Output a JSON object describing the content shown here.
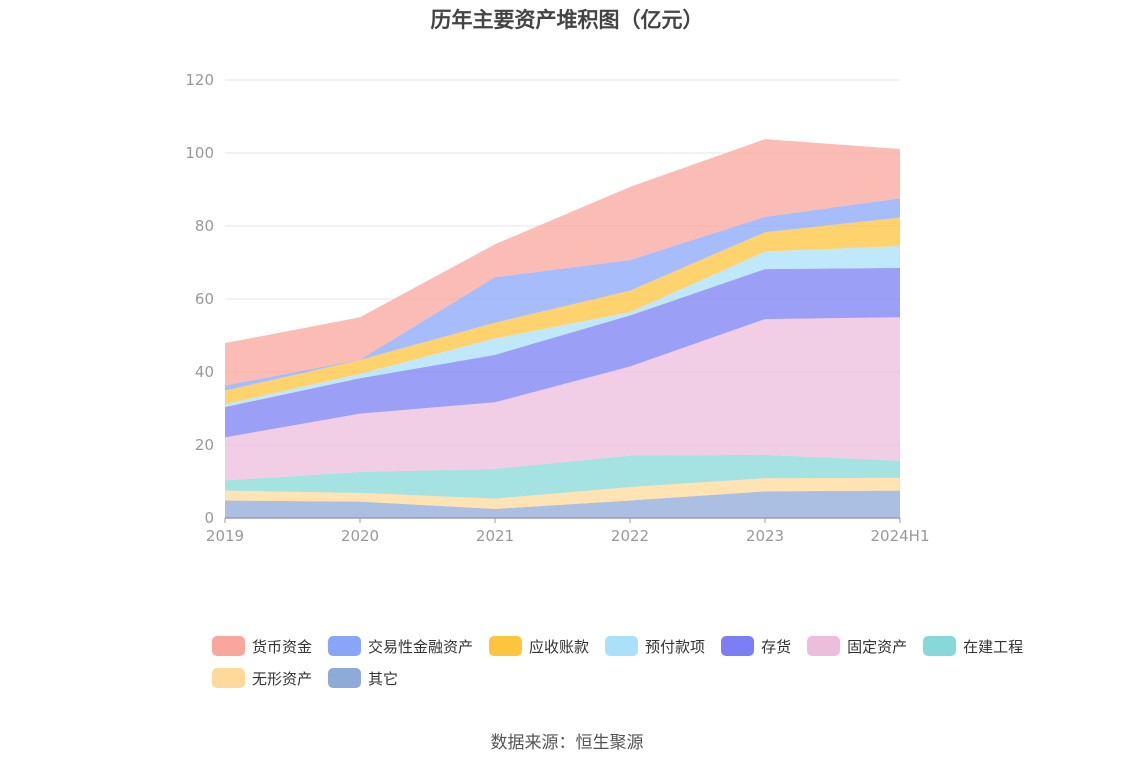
{
  "source_label": "数据来源：恒生聚源",
  "chart_data": {
    "type": "area",
    "stacked": true,
    "title": "历年主要资产堆积图（亿元）",
    "xlabel": "",
    "ylabel": "",
    "x": [
      "2019",
      "2020",
      "2021",
      "2022",
      "2023",
      "2024H1"
    ],
    "ylim": [
      0,
      120
    ],
    "yticks": [
      0,
      20,
      40,
      60,
      80,
      100,
      120
    ],
    "grid": true,
    "legend_position": "bottom",
    "series": [
      {
        "name": "其它",
        "color": "#8eaad7",
        "values": [
          4.8,
          4.5,
          2.5,
          4.8,
          7.3,
          7.5
        ]
      },
      {
        "name": "无形资产",
        "color": "#ffd99a",
        "values": [
          2.7,
          2.4,
          2.8,
          3.7,
          3.6,
          3.5
        ]
      },
      {
        "name": "在建工程",
        "color": "#87d8d8",
        "values": [
          2.8,
          5.7,
          8.2,
          8.6,
          6.4,
          4.7
        ]
      },
      {
        "name": "固定资产",
        "color": "#ecbedc",
        "values": [
          11.8,
          16.0,
          18.2,
          24.4,
          37.2,
          39.3
        ]
      },
      {
        "name": "存货",
        "color": "#7b7ff3",
        "values": [
          8.3,
          9.7,
          13.0,
          14.0,
          13.7,
          13.5
        ]
      },
      {
        "name": "预付款项",
        "color": "#abe0fa",
        "values": [
          0.8,
          1.2,
          4.5,
          0.9,
          4.8,
          6.0
        ]
      },
      {
        "name": "应收账款",
        "color": "#fdc43d",
        "values": [
          3.7,
          3.8,
          4.3,
          5.9,
          5.3,
          7.8
        ]
      },
      {
        "name": "交易性金融资产",
        "color": "#89a5f8",
        "values": [
          1.4,
          0.1,
          12.5,
          8.4,
          4.2,
          5.3
        ]
      },
      {
        "name": "货币资金",
        "color": "#f9a69e",
        "values": [
          11.6,
          11.6,
          9.0,
          20.0,
          21.3,
          13.5
        ]
      }
    ]
  }
}
